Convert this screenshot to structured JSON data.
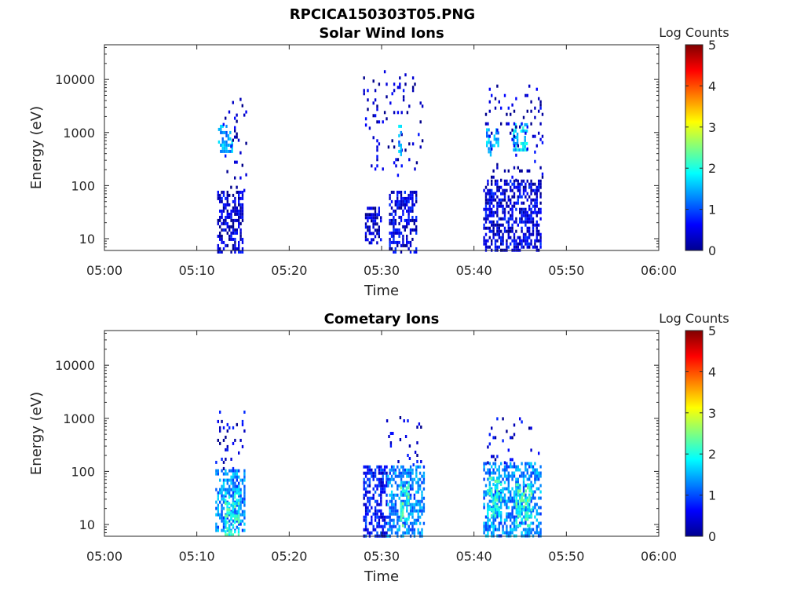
{
  "figure_title": "RPCICA150303T05.PNG",
  "chart_data": [
    {
      "type": "heatmap",
      "title": "Solar Wind Ions",
      "xlabel": "Time",
      "ylabel": "Energy (eV)",
      "x_ticks": [
        "05:00",
        "05:10",
        "05:20",
        "05:30",
        "05:40",
        "05:50",
        "06:00"
      ],
      "xlim_minutes": [
        0,
        60
      ],
      "y_ticks": [
        "10",
        "100",
        "1000",
        "10000"
      ],
      "y_scale": "log",
      "ylim": [
        6,
        45000
      ],
      "colorbar": {
        "label": "Log Counts",
        "ticks": [
          "0",
          "1",
          "2",
          "3",
          "4",
          "5"
        ],
        "range": [
          0,
          5
        ],
        "colormap": "jet"
      },
      "clusters": [
        {
          "t0": 12.3,
          "t1": 13.8,
          "e0": 450,
          "e1": 1400,
          "level": 1.4
        },
        {
          "t0": 12.2,
          "t1": 15.0,
          "e0": 6,
          "e1": 80,
          "level": 0.4
        },
        {
          "t0": 12.8,
          "t1": 15.3,
          "e0": 80,
          "e1": 4500,
          "level": 0.3,
          "sparse": true
        },
        {
          "t0": 28.0,
          "t1": 34.5,
          "e0": 150,
          "e1": 15000,
          "level": 0.3,
          "sparse": true
        },
        {
          "t0": 28.2,
          "t1": 30.0,
          "e0": 8,
          "e1": 40,
          "level": 0.3
        },
        {
          "t0": 30.8,
          "t1": 33.8,
          "e0": 6,
          "e1": 80,
          "level": 0.45
        },
        {
          "t0": 31.8,
          "t1": 32.2,
          "e0": 400,
          "e1": 1400,
          "level": 1.4
        },
        {
          "t0": 41.0,
          "t1": 47.2,
          "e0": 6,
          "e1": 130,
          "level": 0.45
        },
        {
          "t0": 41.3,
          "t1": 42.6,
          "e0": 400,
          "e1": 1200,
          "level": 1.5
        },
        {
          "t0": 44.2,
          "t1": 45.8,
          "e0": 500,
          "e1": 1500,
          "level": 1.7
        },
        {
          "t0": 41.0,
          "t1": 47.5,
          "e0": 130,
          "e1": 8000,
          "level": 0.3,
          "sparse": true
        }
      ]
    },
    {
      "type": "heatmap",
      "title": "Cometary Ions",
      "xlabel": "Time",
      "ylabel": "Energy (eV)",
      "x_ticks": [
        "05:00",
        "05:10",
        "05:20",
        "05:30",
        "05:40",
        "05:50",
        "06:00"
      ],
      "xlim_minutes": [
        0,
        60
      ],
      "y_ticks": [
        "10",
        "100",
        "1000",
        "10000"
      ],
      "y_scale": "log",
      "ylim": [
        6,
        45000
      ],
      "colorbar": {
        "label": "Log Counts",
        "ticks": [
          "0",
          "1",
          "2",
          "3",
          "4",
          "5"
        ],
        "range": [
          0,
          5
        ],
        "colormap": "jet"
      },
      "clusters": [
        {
          "t0": 12.0,
          "t1": 15.2,
          "e0": 8,
          "e1": 110,
          "level": 1.3
        },
        {
          "t0": 13.0,
          "t1": 14.5,
          "e0": 6,
          "e1": 40,
          "level": 2.0
        },
        {
          "t0": 12.0,
          "t1": 15.3,
          "e0": 110,
          "e1": 1400,
          "level": 0.4,
          "sparse": true
        },
        {
          "t0": 28.0,
          "t1": 30.5,
          "e0": 6,
          "e1": 130,
          "level": 0.7
        },
        {
          "t0": 30.6,
          "t1": 34.5,
          "e0": 6,
          "e1": 130,
          "level": 1.3
        },
        {
          "t0": 32.0,
          "t1": 33.0,
          "e0": 10,
          "e1": 60,
          "level": 2.1
        },
        {
          "t0": 30.5,
          "t1": 34.3,
          "e0": 130,
          "e1": 1100,
          "level": 0.4,
          "sparse": true
        },
        {
          "t0": 41.0,
          "t1": 47.2,
          "e0": 6,
          "e1": 150,
          "level": 1.3
        },
        {
          "t0": 41.4,
          "t1": 43.0,
          "e0": 15,
          "e1": 80,
          "level": 2.0
        },
        {
          "t0": 44.5,
          "t1": 46.3,
          "e0": 10,
          "e1": 60,
          "level": 2.1
        },
        {
          "t0": 41.0,
          "t1": 47.0,
          "e0": 150,
          "e1": 1200,
          "level": 0.4,
          "sparse": true
        }
      ]
    }
  ]
}
